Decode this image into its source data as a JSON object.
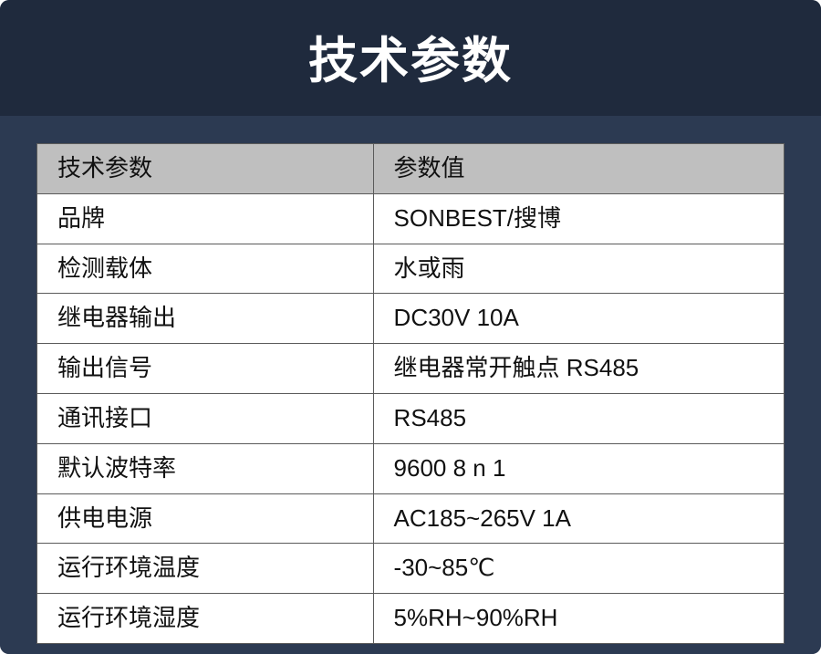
{
  "title": "技术参数",
  "table": {
    "headers": {
      "param": "技术参数",
      "value": "参数值"
    },
    "rows": [
      {
        "param": "品牌",
        "value": "SONBEST/搜博"
      },
      {
        "param": "检测载体",
        "value": "水或雨"
      },
      {
        "param": "继电器输出",
        "value": "DC30V 10A"
      },
      {
        "param": "输出信号",
        "value": "继电器常开触点 RS485"
      },
      {
        "param": "通讯接口",
        "value": "RS485"
      },
      {
        "param": "默认波特率",
        "value": "9600 8 n 1"
      },
      {
        "param": "供电电源",
        "value": "AC185~265V 1A"
      },
      {
        "param": "运行环境温度",
        "value": "-30~85℃"
      },
      {
        "param": "运行环境湿度",
        "value": "5%RH~90%RH"
      }
    ]
  },
  "colors": {
    "card_bg": "#2c3a52",
    "title_bg": "#1f2a3d",
    "title_text": "#ffffff",
    "header_bg": "#bfbfbf",
    "cell_bg": "#ffffff",
    "border": "#5a5a5a",
    "text": "#111111"
  },
  "fonts": {
    "title_size": 54,
    "title_weight": 700,
    "cell_size": 26,
    "cell_weight": 400
  }
}
